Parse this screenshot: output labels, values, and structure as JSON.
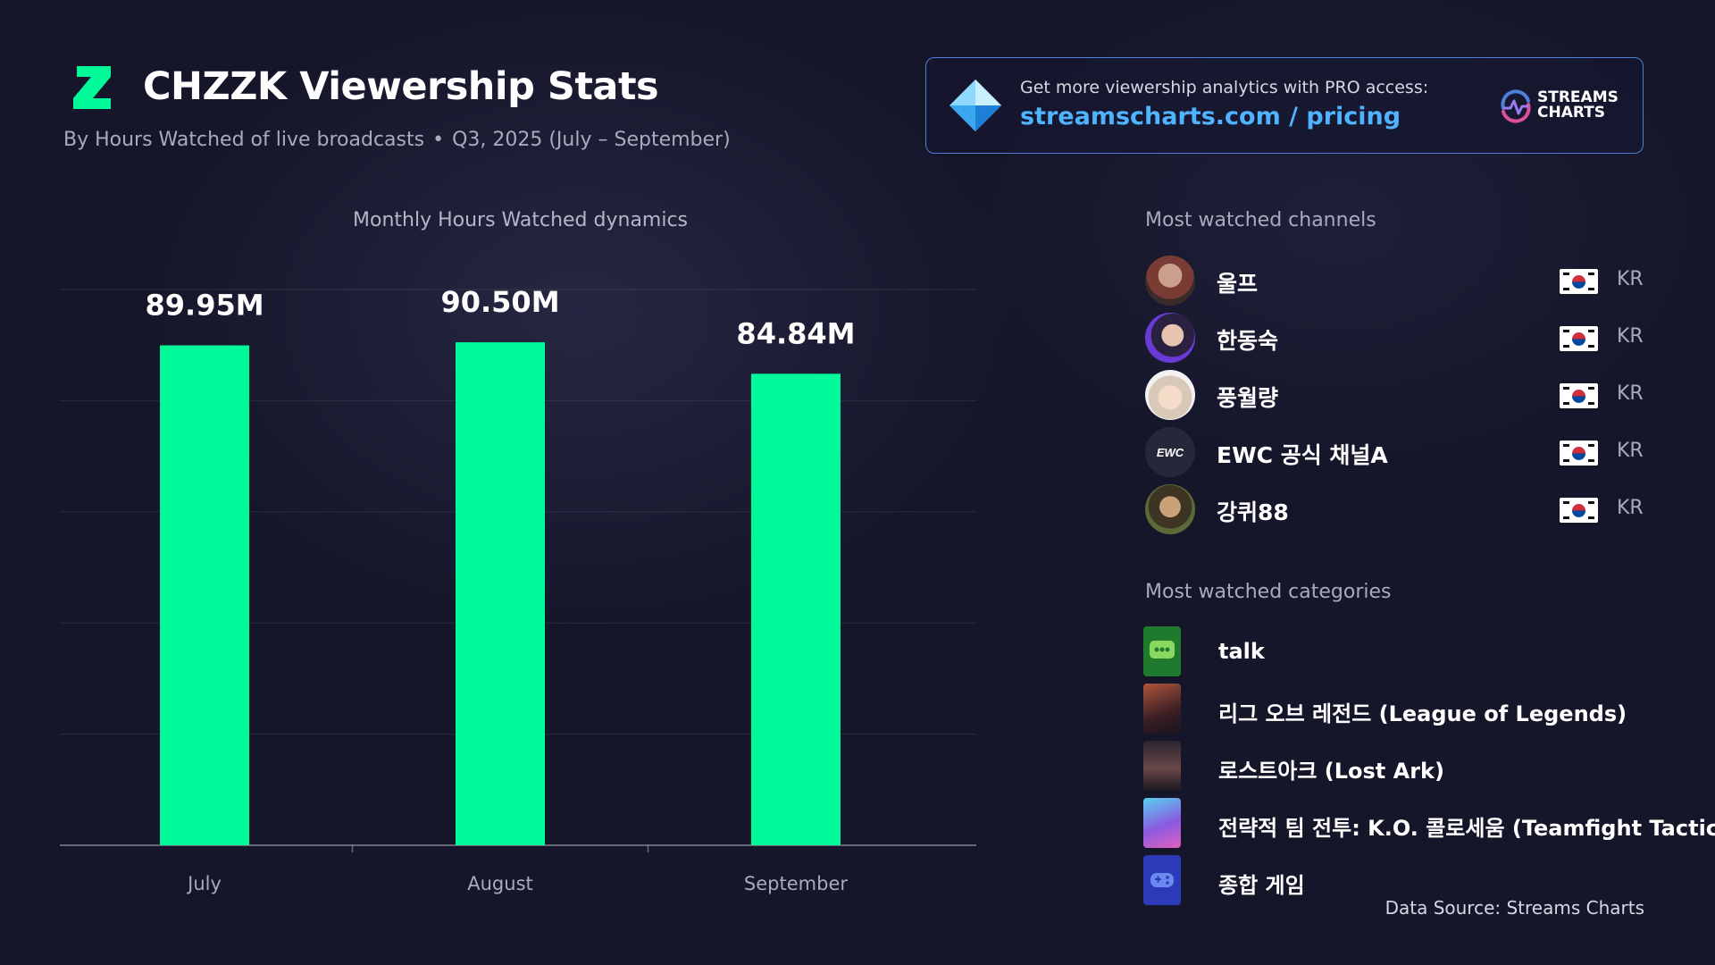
{
  "header": {
    "title": "CHZZK Viewership Stats",
    "subtitle_metric": "By Hours Watched of live broadcasts",
    "subtitle_separator": "•",
    "subtitle_period": "Q3, 2025 (July – September)"
  },
  "promo": {
    "text": "Get more viewership analytics with PRO access:",
    "link": "streamscharts.com / pricing",
    "brand_line1": "STREAMS",
    "brand_line2": "CHARTS"
  },
  "chart_title": "Monthly Hours Watched dynamics",
  "chart_data": {
    "type": "bar",
    "categories": [
      "July",
      "August",
      "September"
    ],
    "values": [
      89.95,
      90.5,
      84.84
    ],
    "value_labels": [
      "89.95M",
      "90.50M",
      "84.84M"
    ],
    "unit": "M hours",
    "ylim": [
      0,
      100
    ],
    "grid": true,
    "bar_color": "#00fa9a"
  },
  "channels": {
    "title": "Most watched channels",
    "items": [
      {
        "name": "울프",
        "country": "KR"
      },
      {
        "name": "한동숙",
        "country": "KR"
      },
      {
        "name": "풍월량",
        "country": "KR"
      },
      {
        "name": "EWC 공식 채널A",
        "country": "KR"
      },
      {
        "name": "강퀴88",
        "country": "KR"
      }
    ]
  },
  "categories": {
    "title": "Most watched categories",
    "items": [
      {
        "name": "talk"
      },
      {
        "name": "리그 오브 레전드 (League of Legends)"
      },
      {
        "name": "로스트아크 (Lost Ark)"
      },
      {
        "name": "전략적 팀 전투: K.O. 콜로세움 (Teamfight Tactics:"
      },
      {
        "name": "종합 게임"
      }
    ]
  },
  "footer": {
    "source": "Data Source: Streams Charts"
  },
  "colors": {
    "accent": "#00fa9a",
    "link": "#4fb3ff",
    "background": "#15162a",
    "promo_border": "#4f7ed8"
  }
}
